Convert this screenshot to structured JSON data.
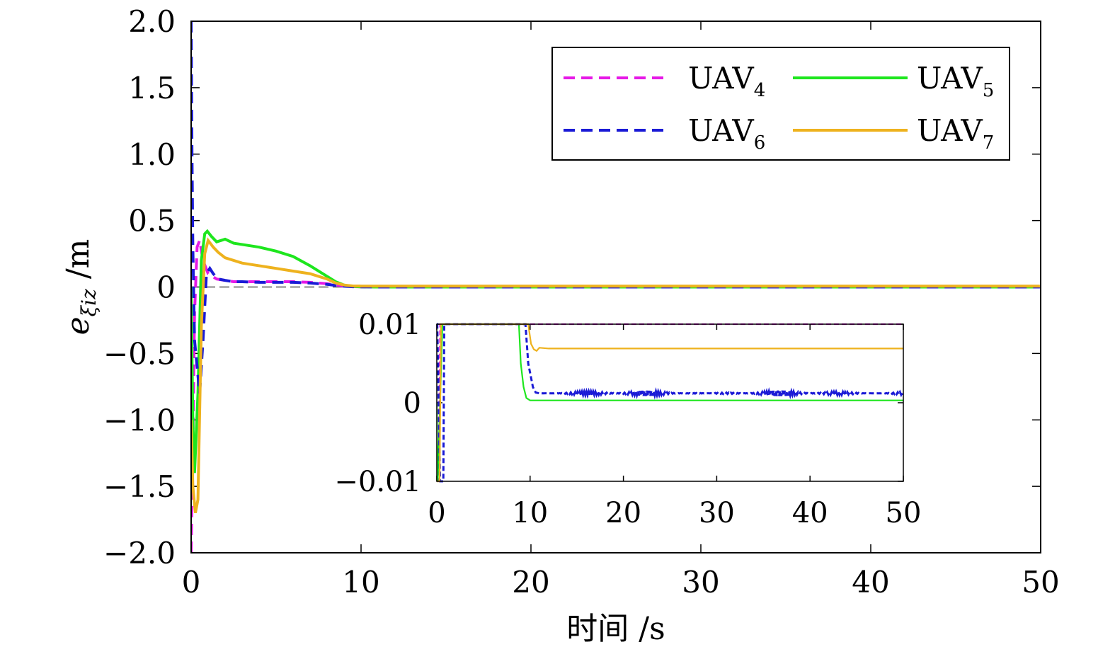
{
  "chart_data": [
    {
      "type": "line",
      "panel": "main",
      "xlabel": "时间 /s",
      "ylabel": "e",
      "ylabel_subscript": "ξiz",
      "ylabel_unit": " /m",
      "xlim": [
        0,
        50
      ],
      "ylim": [
        -2.0,
        2.0
      ],
      "xticks": [
        0,
        10,
        20,
        30,
        40,
        50
      ],
      "xtick_labels": [
        "0",
        "10",
        "20",
        "30",
        "40",
        "50"
      ],
      "yticks": [
        -2.0,
        -1.5,
        -1.0,
        -0.5,
        0,
        0.5,
        1.0,
        1.5,
        2.0
      ],
      "ytick_labels": [
        "−2.0",
        "−1.5",
        "−1.0",
        "−0.5",
        "0",
        "0.5",
        "1.0",
        "1.5",
        "2.0"
      ],
      "grid": false,
      "legend_placement": "top-right",
      "zero_reference_line": true,
      "series": [
        {
          "name": "UAV",
          "name_subscript": "4",
          "color": "#e619e6",
          "style": "dashed",
          "x": [
            0,
            0.1,
            0.2,
            0.35,
            0.5,
            0.7,
            1.0,
            1.5,
            2.0,
            2.5,
            3.0,
            4.0,
            5.0,
            6.0,
            7.0,
            8.0,
            8.5,
            9.0,
            9.5,
            10.0,
            11.0,
            15,
            20,
            30,
            40,
            50
          ],
          "y": [
            -2.0,
            -1.2,
            -0.2,
            0.3,
            0.35,
            0.2,
            0.1,
            0.06,
            0.05,
            0.04,
            0.04,
            0.04,
            0.04,
            0.04,
            0.035,
            0.025,
            0.015,
            0.008,
            0.003,
            0.001,
            0.0,
            0.0,
            0.0,
            0.0,
            0.0,
            0.0
          ]
        },
        {
          "name": "UAV",
          "name_subscript": "5",
          "color": "#1ee61e",
          "style": "solid",
          "x": [
            0,
            0.1,
            0.2,
            0.4,
            0.6,
            0.8,
            0.95,
            1.2,
            1.5,
            2.0,
            2.5,
            3.0,
            4.0,
            5.0,
            6.0,
            7.0,
            8.0,
            8.5,
            9.0,
            9.5,
            10.0,
            11.0,
            15,
            20,
            30,
            40,
            50
          ],
          "y": [
            0.0,
            -1.0,
            -1.4,
            -0.8,
            0.2,
            0.4,
            0.42,
            0.38,
            0.34,
            0.36,
            0.33,
            0.32,
            0.3,
            0.27,
            0.23,
            0.16,
            0.08,
            0.04,
            0.015,
            0.005,
            0.001,
            0.0,
            0.0,
            0.0,
            0.0,
            0.0,
            0.0
          ]
        },
        {
          "name": "UAV",
          "name_subscript": "6",
          "color": "#1a1ad6",
          "style": "dashed",
          "x": [
            0,
            0.05,
            0.1,
            0.2,
            0.35,
            0.5,
            0.7,
            0.9,
            1.1,
            1.3,
            1.6,
            2.0,
            2.5,
            3.0,
            4.0,
            5.0,
            6.0,
            7.0,
            8.0,
            8.5,
            9.0,
            9.5,
            10.0,
            11.0,
            15,
            20,
            30,
            40,
            50
          ],
          "y": [
            2.0,
            1.0,
            0.3,
            -0.4,
            -0.6,
            -0.8,
            -0.4,
            0.1,
            0.14,
            0.1,
            0.06,
            0.05,
            0.04,
            0.04,
            0.035,
            0.035,
            0.035,
            0.03,
            0.02,
            0.012,
            0.006,
            0.002,
            0.001,
            0.0,
            0.0,
            0.0,
            0.0,
            0.0,
            0.0
          ]
        },
        {
          "name": "UAV",
          "name_subscript": "7",
          "color": "#eeb21e",
          "style": "solid",
          "x": [
            0,
            0.1,
            0.25,
            0.4,
            0.6,
            0.8,
            1.0,
            1.3,
            1.6,
            2.0,
            3.0,
            4.0,
            5.0,
            6.0,
            7.0,
            8.0,
            8.5,
            9.0,
            9.5,
            10.0,
            11.0,
            15,
            20,
            30,
            40,
            50
          ],
          "y": [
            -1.0,
            -1.5,
            -1.7,
            -1.6,
            -0.3,
            0.25,
            0.35,
            0.3,
            0.26,
            0.22,
            0.18,
            0.16,
            0.14,
            0.12,
            0.1,
            0.06,
            0.03,
            0.015,
            0.008,
            0.007,
            0.007,
            0.007,
            0.007,
            0.007,
            0.007,
            0.007
          ]
        }
      ]
    },
    {
      "type": "line",
      "panel": "inset",
      "xlim": [
        0,
        50
      ],
      "ylim": [
        -0.01,
        0.01
      ],
      "xticks": [
        0,
        10,
        20,
        30,
        40,
        50
      ],
      "xtick_labels": [
        "0",
        "10",
        "20",
        "30",
        "40",
        "50"
      ],
      "yticks": [
        -0.01,
        0,
        0.01
      ],
      "ytick_labels": [
        "−0.01",
        "0",
        "0.01"
      ],
      "grid": false,
      "series": [
        {
          "ref": "UAV4",
          "color": "#e619e6",
          "style": "dashed",
          "x": [
            0,
            0.2,
            0.35,
            0.5,
            1.0,
            50
          ],
          "y": [
            -0.01,
            -0.01,
            0.01,
            0.01,
            0.01,
            0.01
          ]
        },
        {
          "ref": "UAV5",
          "color": "#1ee61e",
          "style": "solid",
          "x": [
            0,
            0.05,
            0.1,
            0.6,
            8.8,
            9.0,
            9.3,
            9.6,
            10.0,
            50
          ],
          "y": [
            0.0,
            -0.01,
            -0.01,
            0.01,
            0.01,
            0.005,
            0.002,
            0.0006,
            0.0003,
            0.0003
          ]
        },
        {
          "ref": "UAV6",
          "color": "#1a1ad6",
          "style": "dashed",
          "x": [
            0,
            0.05,
            0.35,
            0.7,
            0.8,
            9.5,
            9.8,
            10.3,
            10.6,
            11.0,
            50
          ],
          "y": [
            0.01,
            0.01,
            -0.01,
            -0.01,
            0.01,
            0.01,
            0.005,
            0.002,
            0.0013,
            0.0012,
            0.0012
          ],
          "oscillation": {
            "x_start": 11,
            "x_end": 50,
            "center": 0.0012,
            "amplitude": 0.00035
          }
        },
        {
          "ref": "UAV7",
          "color": "#eeb21e",
          "style": "solid",
          "x": [
            0,
            0.15,
            0.3,
            0.45,
            0.6,
            9.8,
            10.1,
            10.4,
            10.7,
            11.0,
            12.0,
            50
          ],
          "y": [
            -0.01,
            -0.01,
            -0.01,
            0.01,
            0.01,
            0.01,
            0.0075,
            0.0068,
            0.0066,
            0.007,
            0.0069,
            0.0069
          ]
        }
      ]
    }
  ]
}
